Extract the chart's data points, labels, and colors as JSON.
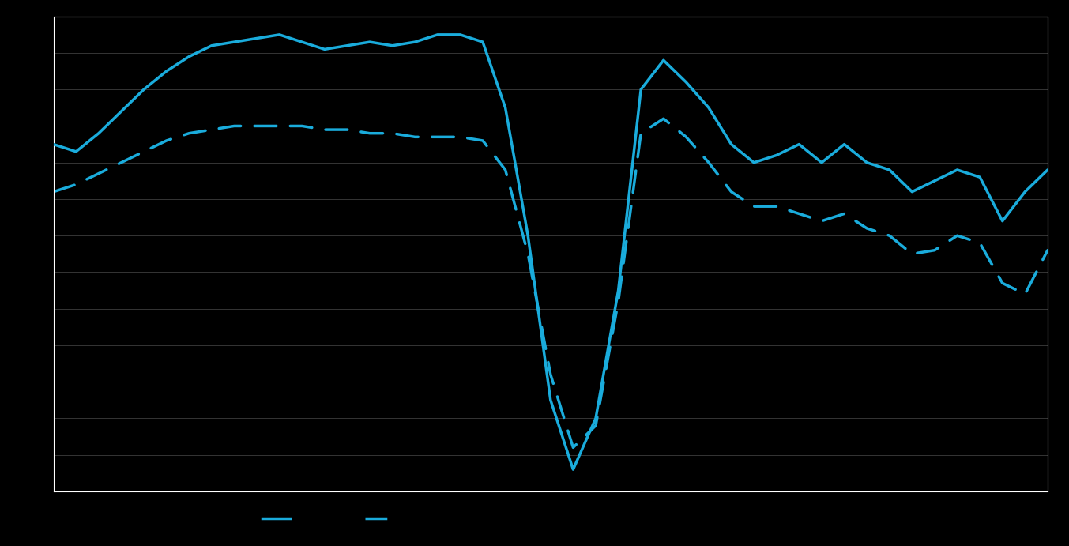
{
  "solid_line": [
    35,
    33,
    38,
    44,
    50,
    55,
    59,
    62,
    63,
    64,
    65,
    63,
    61,
    62,
    63,
    62,
    63,
    65,
    65,
    63,
    45,
    10,
    -35,
    -54,
    -40,
    -5,
    50,
    58,
    52,
    45,
    35,
    30,
    32,
    35,
    30,
    35,
    30,
    28,
    22,
    25,
    28,
    26,
    14,
    22,
    28
  ],
  "dashed_line": [
    22,
    24,
    27,
    30,
    33,
    36,
    38,
    39,
    40,
    40,
    40,
    40,
    39,
    39,
    38,
    38,
    37,
    37,
    37,
    36,
    28,
    5,
    -28,
    -48,
    -42,
    -8,
    38,
    42,
    37,
    30,
    22,
    18,
    18,
    16,
    14,
    16,
    12,
    10,
    5,
    6,
    10,
    8,
    -3,
    -6,
    6
  ],
  "line_color": "#1aacdc",
  "background_color": "#000000",
  "grid_color": "#3d3d3d",
  "ylim": [
    -60,
    70
  ],
  "n_gridlines": 14,
  "grid_y_values": [
    -60,
    -50,
    -40,
    -30,
    -20,
    -10,
    0,
    10,
    20,
    30,
    40,
    50,
    60,
    70
  ]
}
